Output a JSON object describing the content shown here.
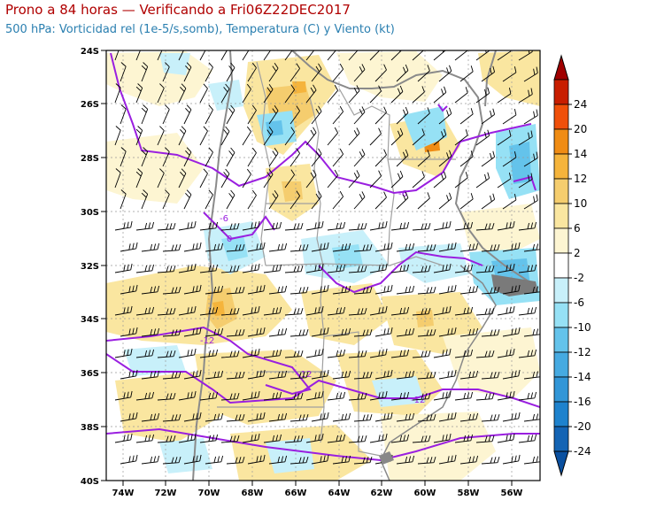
{
  "header": {
    "title": "Prono a 84 horas — Verificando a Fri06Z22DEC2017",
    "subtitle": "500 hPa: Vorticidad rel (1e-5/s,somb), Temperatura (C) y Viento (kt)"
  },
  "map": {
    "lat_ticks": [
      "24S",
      "26S",
      "28S",
      "30S",
      "32S",
      "34S",
      "36S",
      "38S",
      "40S"
    ],
    "lon_ticks": [
      "74W",
      "72W",
      "70W",
      "68W",
      "66W",
      "64W",
      "62W",
      "60W",
      "58W",
      "56W"
    ],
    "lat_range": [
      -40,
      -24
    ],
    "lon_range": [
      -75.3,
      -55.0
    ],
    "contour_labels": [
      "-6",
      "0",
      "-6",
      "-12",
      "-12",
      "-12"
    ]
  },
  "colorbar": {
    "labels": [
      "24",
      "20",
      "14",
      "12",
      "10",
      "6",
      "2",
      "-2",
      "-6",
      "-10",
      "-12",
      "-14",
      "-16",
      "-20",
      "-24"
    ],
    "colors": [
      "#c81e00",
      "#f0500a",
      "#f08c14",
      "#f5b43c",
      "#f5cd6e",
      "#fae6a0",
      "#fdf5d2",
      "#ffffff",
      "#c8f0fa",
      "#96e1f5",
      "#64c3eb",
      "#46aae1",
      "#3296d7",
      "#1e82cd",
      "#1464b4"
    ],
    "top_triangle_color": "#a00000",
    "bottom_triangle_color": "#0a50a0"
  }
}
